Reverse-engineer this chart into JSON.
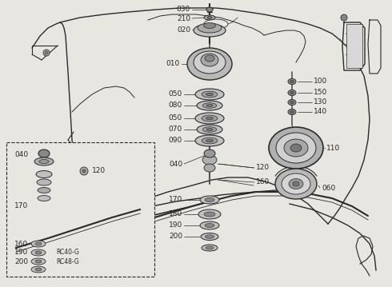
{
  "bg": "#e8e6e0",
  "lc": "#2a2a2a",
  "fig_w": 4.9,
  "fig_h": 3.59,
  "dpi": 100,
  "gray1": "#a0a0a0",
  "gray2": "#c8c8c8",
  "gray3": "#888888",
  "gray4": "#d0d0d0",
  "white": "#f0f0f0"
}
